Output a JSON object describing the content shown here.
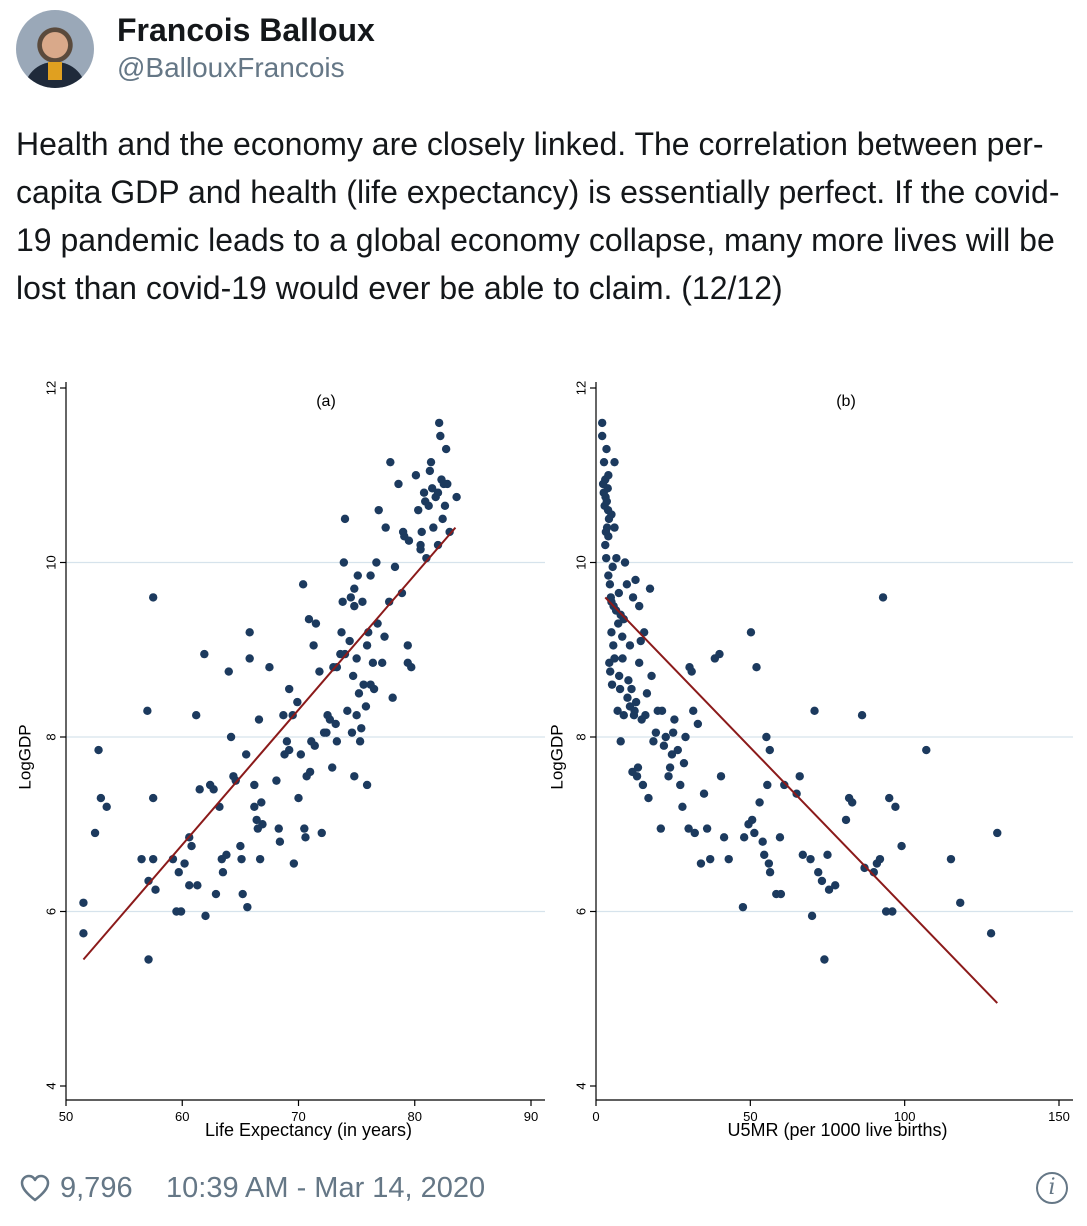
{
  "tweet": {
    "display_name": "Francois Balloux",
    "handle": "@BallouxFrancois",
    "text": "Health and the economy are closely linked. The correlation between per-capita GDP and health (life expectancy) is essentially perfect. If the covid-19 pandemic leads to a global economy collapse, many more lives will be lost than covid-19 would ever be able to claim. (12/12)",
    "likes": "9,796",
    "timestamp": "10:39 AM - Mar 14, 2020"
  },
  "icons": {
    "like": "heart-icon",
    "info": "info-icon",
    "avatar": "avatar"
  },
  "colors": {
    "dot": "#1c3a5e",
    "fit_line": "#8b1a1a",
    "grid": "#d6e3ec",
    "muted": "#657786"
  },
  "chart_data": [
    {
      "type": "scatter",
      "title": "(a)",
      "xlabel": "Life Expectancy (in years)",
      "ylabel": "LogGDP",
      "xlim": [
        50,
        90
      ],
      "ylim": [
        4,
        12
      ],
      "xticks": [
        50,
        60,
        70,
        80,
        90
      ],
      "yticks": [
        4,
        6,
        8,
        10,
        12
      ],
      "grid": true,
      "fit_line": [
        [
          51.5,
          5.45
        ],
        [
          83.5,
          10.4
        ]
      ],
      "points": [
        [
          51.5,
          6.1
        ],
        [
          51.5,
          5.75
        ],
        [
          52.5,
          6.9
        ],
        [
          52.8,
          7.85
        ],
        [
          53,
          7.3
        ],
        [
          53.5,
          7.2
        ],
        [
          56.5,
          6.6
        ],
        [
          57,
          8.3
        ],
        [
          57.1,
          6.35
        ],
        [
          57.1,
          5.45
        ],
        [
          57.5,
          9.6
        ],
        [
          57.5,
          7.3
        ],
        [
          57.5,
          6.6
        ],
        [
          57.7,
          6.25
        ],
        [
          59.2,
          6.6
        ],
        [
          59.5,
          6
        ],
        [
          59.7,
          6.45
        ],
        [
          59.9,
          6
        ],
        [
          60.2,
          6.55
        ],
        [
          60.6,
          6.3
        ],
        [
          60.6,
          6.85
        ],
        [
          60.8,
          6.75
        ],
        [
          61.2,
          8.25
        ],
        [
          61.3,
          6.3
        ],
        [
          61.5,
          7.4
        ],
        [
          61.9,
          8.95
        ],
        [
          62,
          5.95
        ],
        [
          62.4,
          7.45
        ],
        [
          62.7,
          7.4
        ],
        [
          62.9,
          6.2
        ],
        [
          63.2,
          7.2
        ],
        [
          63.4,
          6.6
        ],
        [
          63.5,
          6.45
        ],
        [
          63.8,
          6.65
        ],
        [
          64,
          8.75
        ],
        [
          64.2,
          8
        ],
        [
          64.4,
          7.55
        ],
        [
          64.6,
          7.5
        ],
        [
          65,
          6.75
        ],
        [
          65.1,
          6.6
        ],
        [
          65.2,
          6.2
        ],
        [
          65.5,
          7.8
        ],
        [
          65.6,
          6.05
        ],
        [
          65.8,
          9.2
        ],
        [
          65.8,
          8.9
        ],
        [
          66.2,
          7.2
        ],
        [
          66.2,
          7.45
        ],
        [
          66.4,
          7.05
        ],
        [
          66.5,
          6.95
        ],
        [
          66.6,
          8.2
        ],
        [
          66.7,
          6.6
        ],
        [
          66.8,
          7.25
        ],
        [
          66.9,
          7.0
        ],
        [
          67.5,
          8.8
        ],
        [
          68.1,
          7.5
        ],
        [
          68.3,
          6.95
        ],
        [
          68.4,
          6.8
        ],
        [
          68.7,
          8.25
        ],
        [
          68.8,
          7.8
        ],
        [
          69,
          7.95
        ],
        [
          69.2,
          7.85
        ],
        [
          69.2,
          8.55
        ],
        [
          69.5,
          8.25
        ],
        [
          69.6,
          6.55
        ],
        [
          69.9,
          8.4
        ],
        [
          70,
          7.3
        ],
        [
          70.2,
          7.8
        ],
        [
          70.4,
          9.75
        ],
        [
          70.5,
          6.95
        ],
        [
          70.6,
          6.85
        ],
        [
          70.7,
          7.55
        ],
        [
          70.9,
          9.35
        ],
        [
          71,
          7.6
        ],
        [
          71.1,
          7.95
        ],
        [
          71.3,
          9.05
        ],
        [
          71.4,
          7.9
        ],
        [
          71.5,
          9.3
        ],
        [
          71.8,
          8.75
        ],
        [
          72,
          6.9
        ],
        [
          72.2,
          8.05
        ],
        [
          72.4,
          8.05
        ],
        [
          72.5,
          8.25
        ],
        [
          72.7,
          8.2
        ],
        [
          72.9,
          7.65
        ],
        [
          73,
          8.8
        ],
        [
          73.2,
          8.15
        ],
        [
          73.3,
          8.8
        ],
        [
          73.3,
          7.95
        ],
        [
          73.6,
          8.95
        ],
        [
          73.7,
          9.2
        ],
        [
          73.8,
          9.55
        ],
        [
          73.9,
          10
        ],
        [
          74,
          8.95
        ],
        [
          74,
          10.5
        ],
        [
          74.2,
          8.3
        ],
        [
          74.4,
          9.1
        ],
        [
          74.5,
          9.6
        ],
        [
          74.6,
          8.05
        ],
        [
          74.7,
          8.7
        ],
        [
          74.8,
          9.5
        ],
        [
          74.8,
          7.55
        ],
        [
          74.8,
          9.7
        ],
        [
          75,
          8.9
        ],
        [
          75,
          8.25
        ],
        [
          75.1,
          9.85
        ],
        [
          75.2,
          8.5
        ],
        [
          75.3,
          7.95
        ],
        [
          75.4,
          8.1
        ],
        [
          75.5,
          9.55
        ],
        [
          75.6,
          8.6
        ],
        [
          75.8,
          8.35
        ],
        [
          75.9,
          9.05
        ],
        [
          75.9,
          7.45
        ],
        [
          76,
          9.2
        ],
        [
          76.2,
          8.6
        ],
        [
          76.2,
          9.85
        ],
        [
          76.4,
          8.85
        ],
        [
          76.5,
          8.55
        ],
        [
          76.7,
          10
        ],
        [
          76.8,
          9.3
        ],
        [
          76.9,
          10.6
        ],
        [
          77.2,
          8.85
        ],
        [
          77.4,
          9.15
        ],
        [
          77.5,
          10.4
        ],
        [
          77.8,
          9.55
        ],
        [
          77.9,
          11.15
        ],
        [
          78.1,
          8.45
        ],
        [
          78.3,
          9.95
        ],
        [
          78.6,
          10.9
        ],
        [
          78.9,
          9.65
        ],
        [
          79,
          10.35
        ],
        [
          79.1,
          10.3
        ],
        [
          79.4,
          9.05
        ],
        [
          79.4,
          8.85
        ],
        [
          79.5,
          10.25
        ],
        [
          79.7,
          8.8
        ],
        [
          80.1,
          11
        ],
        [
          80.3,
          10.6
        ],
        [
          80.5,
          10.15
        ],
        [
          80.5,
          10.2
        ],
        [
          80.6,
          10.35
        ],
        [
          80.8,
          10.8
        ],
        [
          80.9,
          10.7
        ],
        [
          81,
          10.05
        ],
        [
          81.2,
          10.65
        ],
        [
          81.3,
          11.05
        ],
        [
          81.4,
          11.15
        ],
        [
          81.5,
          10.85
        ],
        [
          81.6,
          10.4
        ],
        [
          81.8,
          10.75
        ],
        [
          82,
          10.2
        ],
        [
          82,
          10.8
        ],
        [
          82.1,
          11.6
        ],
        [
          82.2,
          11.45
        ],
        [
          82.3,
          10.95
        ],
        [
          82.4,
          10.5
        ],
        [
          82.5,
          10.9
        ],
        [
          82.6,
          10.65
        ],
        [
          82.7,
          11.3
        ],
        [
          82.8,
          10.9
        ],
        [
          83,
          10.35
        ],
        [
          83.6,
          10.75
        ]
      ]
    },
    {
      "type": "scatter",
      "title": "(b)",
      "xlabel": "U5MR (per 1000 live births)",
      "ylabel": "LogGDP",
      "xlim": [
        0,
        150
      ],
      "ylim": [
        4,
        12
      ],
      "xticks": [
        0,
        50,
        100,
        150
      ],
      "yticks": [
        4,
        6,
        8,
        10,
        12
      ],
      "grid": true,
      "fit_line": [
        [
          3,
          9.6
        ],
        [
          130,
          4.95
        ]
      ],
      "points": [
        [
          2,
          11.6
        ],
        [
          2,
          11.45
        ],
        [
          2.3,
          10.9
        ],
        [
          2.5,
          10.8
        ],
        [
          2.6,
          11.15
        ],
        [
          2.8,
          10.65
        ],
        [
          3,
          10.95
        ],
        [
          3,
          10.2
        ],
        [
          3.1,
          10.75
        ],
        [
          3.2,
          10.35
        ],
        [
          3.3,
          10.05
        ],
        [
          3.4,
          11.3
        ],
        [
          3.5,
          10.7
        ],
        [
          3.6,
          10.4
        ],
        [
          3.8,
          10.85
        ],
        [
          3.9,
          10.6
        ],
        [
          4,
          10.3
        ],
        [
          4,
          9.85
        ],
        [
          4,
          11.0
        ],
        [
          4.2,
          10.5
        ],
        [
          4.3,
          8.85
        ],
        [
          4.5,
          9.75
        ],
        [
          4.6,
          8.75
        ],
        [
          4.8,
          9.6
        ],
        [
          5,
          9.55
        ],
        [
          5,
          10.55
        ],
        [
          5,
          9.2
        ],
        [
          5.2,
          8.6
        ],
        [
          5.4,
          9.95
        ],
        [
          5.6,
          9.05
        ],
        [
          5.7,
          9.5
        ],
        [
          6,
          10.4
        ],
        [
          6,
          8.9
        ],
        [
          6,
          11.15
        ],
        [
          6.5,
          9.45
        ],
        [
          6.6,
          10.05
        ],
        [
          7,
          8.3
        ],
        [
          7.2,
          9.3
        ],
        [
          7.4,
          9.65
        ],
        [
          7.5,
          8.7
        ],
        [
          7.8,
          8.55
        ],
        [
          8,
          9.4
        ],
        [
          8,
          7.95
        ],
        [
          8.5,
          9.15
        ],
        [
          8.6,
          8.9
        ],
        [
          9,
          9.35
        ],
        [
          9,
          8.25
        ],
        [
          9.4,
          10.0
        ],
        [
          10,
          9.75
        ],
        [
          10.2,
          8.45
        ],
        [
          10.5,
          8.65
        ],
        [
          11,
          9.05
        ],
        [
          11,
          8.35
        ],
        [
          11.5,
          8.55
        ],
        [
          11.8,
          7.6
        ],
        [
          12,
          9.6
        ],
        [
          12.3,
          8.25
        ],
        [
          12.5,
          8.3
        ],
        [
          12.8,
          9.8
        ],
        [
          13,
          8.4
        ],
        [
          13.3,
          7.55
        ],
        [
          13.6,
          7.65
        ],
        [
          14,
          9.5
        ],
        [
          14,
          8.85
        ],
        [
          14.5,
          9.1
        ],
        [
          14.8,
          8.2
        ],
        [
          15.2,
          7.45
        ],
        [
          15.6,
          9.2
        ],
        [
          16,
          8.25
        ],
        [
          16.5,
          8.5
        ],
        [
          17,
          7.3
        ],
        [
          17.5,
          9.7
        ],
        [
          18,
          8.7
        ],
        [
          18.6,
          7.95
        ],
        [
          19.4,
          8.05
        ],
        [
          20,
          8.3
        ],
        [
          21,
          6.95
        ],
        [
          21.4,
          8.3
        ],
        [
          22,
          7.9
        ],
        [
          22.6,
          8.0
        ],
        [
          23.5,
          7.55
        ],
        [
          24,
          7.65
        ],
        [
          24.6,
          7.8
        ],
        [
          25,
          8.05
        ],
        [
          25.4,
          8.2
        ],
        [
          26.5,
          7.85
        ],
        [
          27.3,
          7.45
        ],
        [
          28,
          7.2
        ],
        [
          28.5,
          7.7
        ],
        [
          29,
          8.0
        ],
        [
          30,
          6.95
        ],
        [
          30.3,
          8.8
        ],
        [
          31,
          8.75
        ],
        [
          31.5,
          8.3
        ],
        [
          32,
          6.9
        ],
        [
          33,
          8.15
        ],
        [
          34,
          6.55
        ],
        [
          35,
          7.35
        ],
        [
          36,
          6.95
        ],
        [
          37,
          6.6
        ],
        [
          38.5,
          8.9
        ],
        [
          40,
          8.95
        ],
        [
          40.5,
          7.55
        ],
        [
          41.5,
          6.85
        ],
        [
          43,
          6.6
        ],
        [
          47.6,
          6.05
        ],
        [
          48,
          6.85
        ],
        [
          49.4,
          7.0
        ],
        [
          50.2,
          9.2
        ],
        [
          50.6,
          7.05
        ],
        [
          51.3,
          6.9
        ],
        [
          52,
          8.8
        ],
        [
          53,
          7.25
        ],
        [
          54,
          6.8
        ],
        [
          54.5,
          6.65
        ],
        [
          55.2,
          8.0
        ],
        [
          55.5,
          7.45
        ],
        [
          56,
          6.55
        ],
        [
          56.3,
          7.85
        ],
        [
          56.4,
          6.45
        ],
        [
          58.4,
          6.2
        ],
        [
          59.6,
          6.85
        ],
        [
          59.9,
          6.2
        ],
        [
          61,
          7.45
        ],
        [
          65,
          7.35
        ],
        [
          66,
          7.55
        ],
        [
          67,
          6.65
        ],
        [
          69.5,
          6.6
        ],
        [
          70,
          5.95
        ],
        [
          70.8,
          8.3
        ],
        [
          72,
          6.45
        ],
        [
          73.2,
          6.35
        ],
        [
          74,
          5.45
        ],
        [
          75,
          6.65
        ],
        [
          75.5,
          6.25
        ],
        [
          77.5,
          6.3
        ],
        [
          81,
          7.05
        ],
        [
          82,
          7.3
        ],
        [
          83,
          7.25
        ],
        [
          86.2,
          8.25
        ],
        [
          87,
          6.5
        ],
        [
          90,
          6.45
        ],
        [
          91,
          6.55
        ],
        [
          92,
          6.6
        ],
        [
          93,
          9.6
        ],
        [
          94,
          6.0
        ],
        [
          95,
          7.3
        ],
        [
          96,
          6.0
        ],
        [
          97,
          7.2
        ],
        [
          99,
          6.75
        ],
        [
          107,
          7.85
        ],
        [
          115,
          6.6
        ],
        [
          118,
          6.1
        ],
        [
          128,
          5.75
        ],
        [
          130,
          6.9
        ]
      ]
    }
  ]
}
